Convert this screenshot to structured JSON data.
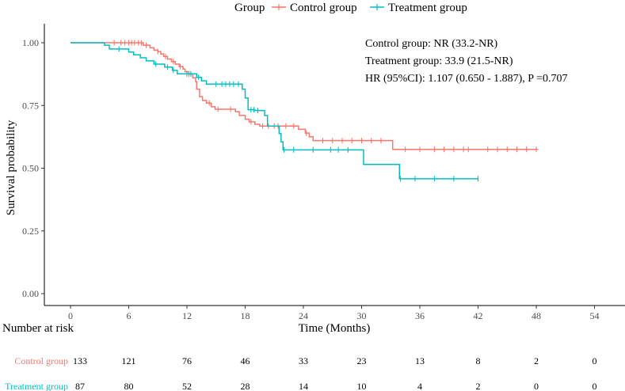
{
  "chart_data": {
    "type": "line",
    "subtype": "kaplan-meier",
    "xlabel": "Time (Months)",
    "ylabel": "Survival probability",
    "xlim": [
      0,
      54
    ],
    "ylim": [
      0,
      1
    ],
    "x_ticks": [
      "0",
      "6",
      "12",
      "18",
      "24",
      "30",
      "36",
      "42",
      "48",
      "54"
    ],
    "y_ticks": [
      "0.00",
      "0.25",
      "0.50",
      "0.75",
      "1.00"
    ],
    "legend": {
      "title": "Group",
      "position": "top",
      "entries": [
        "Control group",
        "Treatment group"
      ]
    },
    "annotations": [
      "Control group: NR (33.2-NR)",
      "Treatment group: 33.9 (21.5-NR)",
      "HR (95%CI): 1.107 (0.650 - 1.887), P =0.707"
    ],
    "series": [
      {
        "name": "Control group",
        "color": "#F8766D",
        "steps": [
          [
            0,
            1.0
          ],
          [
            7.5,
            0.99
          ],
          [
            8.2,
            0.98
          ],
          [
            8.6,
            0.97
          ],
          [
            9.0,
            0.965
          ],
          [
            9.3,
            0.955
          ],
          [
            9.6,
            0.945
          ],
          [
            10.0,
            0.935
          ],
          [
            10.4,
            0.925
          ],
          [
            10.8,
            0.915
          ],
          [
            11.2,
            0.905
          ],
          [
            11.6,
            0.895
          ],
          [
            11.8,
            0.885
          ],
          [
            12.2,
            0.875
          ],
          [
            12.6,
            0.86
          ],
          [
            12.9,
            0.845
          ],
          [
            13.0,
            0.815
          ],
          [
            13.3,
            0.785
          ],
          [
            13.6,
            0.77
          ],
          [
            14.0,
            0.76
          ],
          [
            14.5,
            0.745
          ],
          [
            14.9,
            0.735
          ],
          [
            17.0,
            0.725
          ],
          [
            17.4,
            0.71
          ],
          [
            18.0,
            0.695
          ],
          [
            18.4,
            0.685
          ],
          [
            19.0,
            0.675
          ],
          [
            19.5,
            0.668
          ],
          [
            23.5,
            0.655
          ],
          [
            24.2,
            0.64
          ],
          [
            24.6,
            0.625
          ],
          [
            25.0,
            0.61
          ],
          [
            33.2,
            0.575
          ]
        ],
        "end": 48.2,
        "censor": [
          4.5,
          5.2,
          5.6,
          6.0,
          6.3,
          6.6,
          7.0,
          7.3,
          7.8,
          9.0,
          9.8,
          10.6,
          11.3,
          12.2,
          14.3,
          15.2,
          16.5,
          18.6,
          19.8,
          20.4,
          21.0,
          21.4,
          22.2,
          23.0,
          24.3,
          26.0,
          27.0,
          28.0,
          29.0,
          30.0,
          31.0,
          32.0,
          34.5,
          36.0,
          37.5,
          38.5,
          39.5,
          40.5,
          41.0,
          43.0,
          44.0,
          45.0,
          46.0,
          47.0,
          48.0
        ]
      },
      {
        "name": "Treatment group",
        "color": "#00BFC4",
        "steps": [
          [
            0,
            1.0
          ],
          [
            3.5,
            0.99
          ],
          [
            4.0,
            0.975
          ],
          [
            6.0,
            0.963
          ],
          [
            6.5,
            0.952
          ],
          [
            7.2,
            0.94
          ],
          [
            7.8,
            0.928
          ],
          [
            8.6,
            0.915
          ],
          [
            9.7,
            0.903
          ],
          [
            10.5,
            0.89
          ],
          [
            11.0,
            0.876
          ],
          [
            13.0,
            0.862
          ],
          [
            13.5,
            0.848
          ],
          [
            14.0,
            0.835
          ],
          [
            17.7,
            0.815
          ],
          [
            18.0,
            0.78
          ],
          [
            18.3,
            0.733
          ],
          [
            19.0,
            0.73
          ],
          [
            20.0,
            0.71
          ],
          [
            20.3,
            0.668
          ],
          [
            21.5,
            0.638
          ],
          [
            21.7,
            0.605
          ],
          [
            21.9,
            0.573
          ],
          [
            30.2,
            0.515
          ],
          [
            33.9,
            0.458
          ]
        ],
        "end": 42.0,
        "censor": [
          5.0,
          8.8,
          10.0,
          10.6,
          12.0,
          12.4,
          13.2,
          15.0,
          15.6,
          16.0,
          16.4,
          16.8,
          17.3,
          18.6,
          18.9,
          19.3,
          22.0,
          23.0,
          25.0,
          26.8,
          27.6,
          28.6,
          34.0,
          35.5,
          37.5,
          39.5,
          42.0
        ]
      }
    ]
  },
  "risk_table": {
    "title": "Number at risk",
    "rows": [
      {
        "label": "Control group",
        "color": "#F8766D",
        "counts": [
          "133",
          "121",
          "76",
          "46",
          "33",
          "23",
          "13",
          "8",
          "2",
          "0"
        ]
      },
      {
        "label": "Treatment group",
        "color": "#00BFC4",
        "counts": [
          "87",
          "80",
          "52",
          "28",
          "14",
          "10",
          "4",
          "2",
          "0",
          "0"
        ]
      }
    ]
  }
}
